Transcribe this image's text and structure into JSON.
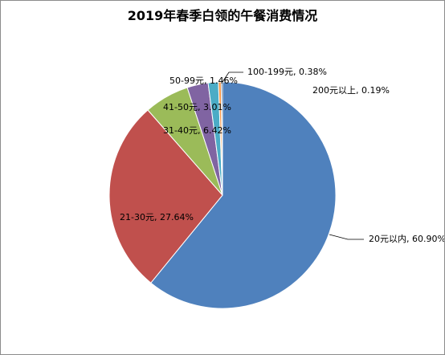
{
  "chart_data": {
    "type": "pie",
    "title": "2019年春季白领的午餐消费情况",
    "categories": [
      "20元以内",
      "21-30元",
      "31-40元",
      "41-50元",
      "50-99元",
      "100-199元",
      "200元以上"
    ],
    "values": [
      60.9,
      27.64,
      6.42,
      3.01,
      1.46,
      0.38,
      0.19
    ],
    "value_labels": [
      "60.90%",
      "27.64%",
      "6.42%",
      "3.01%",
      "1.46%",
      "0.38%",
      "0.19%"
    ],
    "colors": [
      "#4f81bd",
      "#c0504d",
      "#9bbb59",
      "#8064a2",
      "#4bacc6",
      "#f79646",
      "#2c4d75"
    ],
    "start_angle_deg": 0,
    "direction": "clockwise",
    "legend": "none",
    "data_labels": "outside with leader lines"
  }
}
